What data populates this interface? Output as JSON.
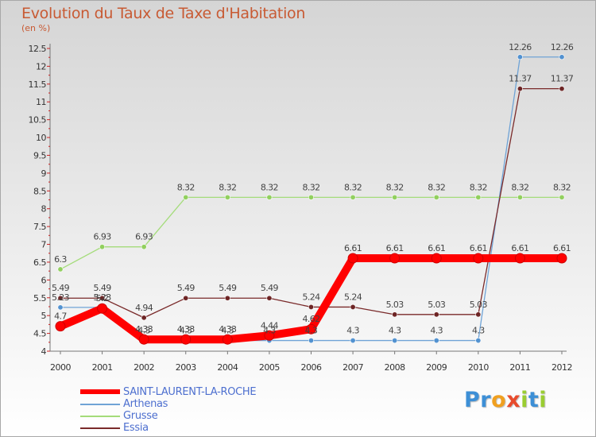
{
  "chart_data": {
    "type": "line",
    "title": "Evolution du Taux de Taxe d'Habitation",
    "subtitle": "(en %)",
    "x": [
      "2000",
      "2001",
      "2002",
      "2003",
      "2004",
      "2005",
      "2006",
      "2007",
      "2008",
      "2009",
      "2010",
      "2011",
      "2012"
    ],
    "ylim": [
      4,
      12.5
    ],
    "yticks": [
      "4",
      "4.5",
      "5",
      "5.5",
      "6",
      "6.5",
      "7",
      "7.5",
      "8",
      "8.5",
      "9",
      "9.5",
      "10",
      "10.5",
      "11",
      "11.5",
      "12",
      "12.5"
    ],
    "grid": false,
    "legend": "bottom-left",
    "series": [
      {
        "name": "Arthenas",
        "color": "#6fa3d6",
        "marker_color": "#4d8fd0",
        "values": [
          5.23,
          5.23,
          4.3,
          4.3,
          4.3,
          4.3,
          4.3,
          4.3,
          4.3,
          4.3,
          4.3,
          12.26,
          12.26
        ],
        "labels": [
          "5.23",
          "5.23",
          "4.3",
          "4.3",
          "4.3",
          "4.3",
          "4.3",
          "4.3",
          "4.3",
          "4.3",
          "4.3",
          "12.26",
          "12.26"
        ]
      },
      {
        "name": "Grusse",
        "color": "#a4dc7a",
        "marker_color": "#8fcf5a",
        "values": [
          6.3,
          6.93,
          6.93,
          8.32,
          8.32,
          8.32,
          8.32,
          8.32,
          8.32,
          8.32,
          8.32,
          8.32,
          8.32
        ],
        "labels": [
          "6.3",
          "6.93",
          "6.93",
          "8.32",
          "8.32",
          "8.32",
          "8.32",
          "8.32",
          "8.32",
          "8.32",
          "8.32",
          "8.32",
          "8.32"
        ]
      },
      {
        "name": "Essia",
        "color": "#7a2a2a",
        "marker_color": "#6a1f1f",
        "values": [
          5.49,
          5.49,
          4.94,
          5.49,
          5.49,
          5.49,
          5.24,
          5.24,
          5.03,
          5.03,
          5.03,
          11.37,
          11.37
        ],
        "labels": [
          "5.49",
          "5.49",
          "4.94",
          "5.49",
          "5.49",
          "5.49",
          "5.24",
          "5.24",
          "5.03",
          "5.03",
          "5.03",
          "11.37",
          "11.37"
        ]
      },
      {
        "name": "SAINT-LAURENT-LA-ROCHE",
        "color": "#ff0000",
        "marker_color": "#ff0000",
        "values": [
          4.7,
          5.2,
          4.33,
          4.33,
          4.33,
          4.44,
          4.62,
          6.61,
          6.61,
          6.61,
          6.61,
          6.61,
          6.61
        ],
        "labels": [
          "4.7",
          "5.2",
          "4.33",
          "4.33",
          "4.33",
          "4.44",
          "4.62",
          "6.61",
          "6.61",
          "6.61",
          "6.61",
          "6.61",
          "6.61"
        ]
      }
    ],
    "legend_entries": [
      "SAINT-LAURENT-LA-ROCHE",
      "Arthenas",
      "Grusse",
      "Essia"
    ]
  },
  "legend_colors": {
    "saint_laurent": "#ff0000",
    "arthenas": "#6fa3d6",
    "grusse": "#a4dc7a",
    "essia": "#7a2a2a"
  },
  "logo": {
    "text": "Proxiti",
    "letters": [
      "P",
      "r",
      "o",
      "x",
      "i",
      "t",
      "i"
    ],
    "colors": [
      "#3d8fd6",
      "#3d8fd6",
      "#f0a020",
      "#e84b2c",
      "#9acd32",
      "#3d8fd6",
      "#9acd32"
    ]
  }
}
